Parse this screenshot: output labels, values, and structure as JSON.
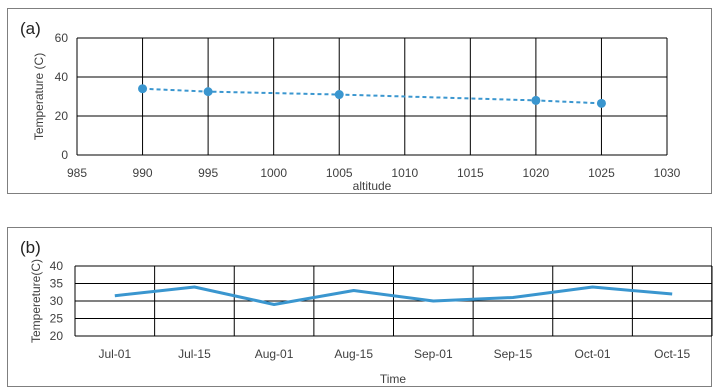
{
  "chart_data": [
    {
      "type": "line",
      "panel_label": "(a)",
      "xlabel": "altitude",
      "ylabel": "Temperature (C)",
      "xlim": [
        985,
        1030
      ],
      "ylim": [
        0,
        60
      ],
      "xticks": [
        985,
        990,
        995,
        1000,
        1005,
        1010,
        1015,
        1020,
        1025,
        1030
      ],
      "yticks": [
        0,
        20,
        40,
        60
      ],
      "grid": true,
      "line_style": "dashed",
      "markers": true,
      "color": "#3a96cf",
      "series": [
        {
          "x": [
            990,
            995,
            1005,
            1020,
            1025
          ],
          "y": [
            34,
            32.5,
            31,
            28,
            26.5
          ]
        }
      ]
    },
    {
      "type": "line",
      "panel_label": "(b)",
      "xlabel": "Time",
      "ylabel": "Tempereture(C)",
      "ylim": [
        20,
        40
      ],
      "yticks": [
        20,
        25,
        30,
        35,
        40
      ],
      "grid": true,
      "line_style": "solid",
      "markers": false,
      "color": "#3a96cf",
      "categories": [
        "Jul-01",
        "Jul-15",
        "Aug-01",
        "Aug-15",
        "Sep-01",
        "Sep-15",
        "Oct-01",
        "Oct-15"
      ],
      "series": [
        {
          "values": [
            31.5,
            34,
            29,
            33,
            30,
            31,
            34,
            32
          ]
        }
      ]
    }
  ]
}
